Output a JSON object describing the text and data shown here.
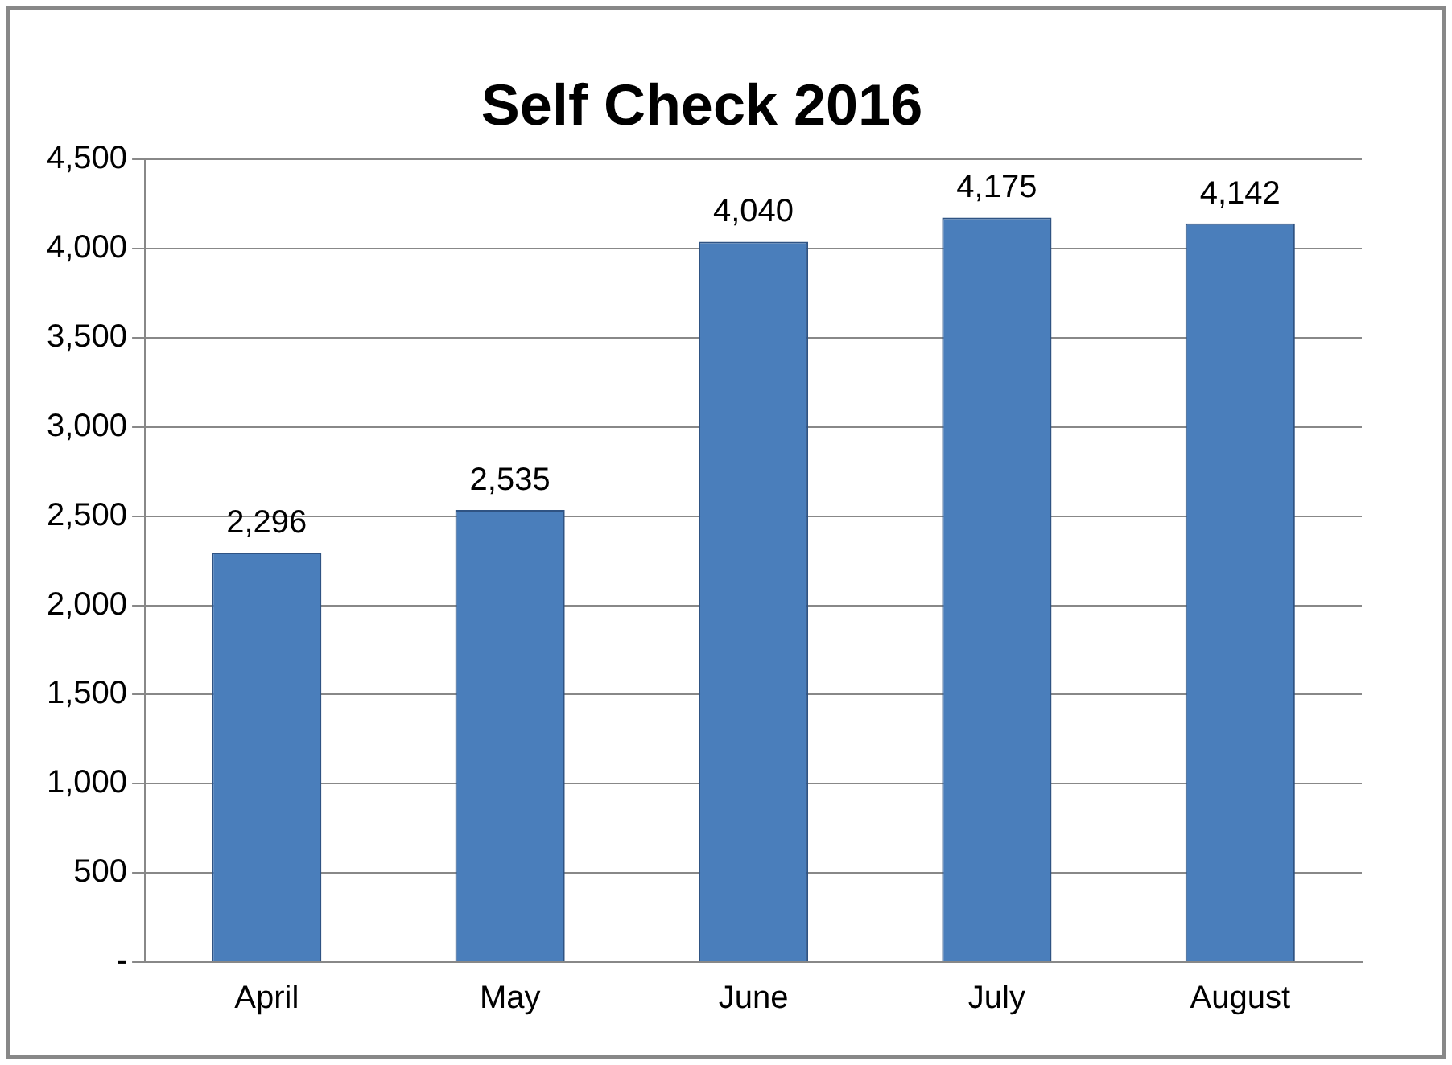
{
  "chart_data": {
    "type": "bar",
    "title": "Self Check 2016",
    "categories": [
      "April",
      "May",
      "June",
      "July",
      "August"
    ],
    "values": [
      2296,
      2535,
      4040,
      4175,
      4142
    ],
    "value_labels": [
      "2,296",
      "2,535",
      "4,040",
      "4,175",
      "4,142"
    ],
    "color": "#4a7ebb",
    "ylim": [
      0,
      4500
    ],
    "yticks": [
      {
        "value": 0,
        "label": "-"
      },
      {
        "value": 500,
        "label": "500"
      },
      {
        "value": 1000,
        "label": "1,000"
      },
      {
        "value": 1500,
        "label": "1,500"
      },
      {
        "value": 2000,
        "label": "2,000"
      },
      {
        "value": 2500,
        "label": "2,500"
      },
      {
        "value": 3000,
        "label": "3,000"
      },
      {
        "value": 3500,
        "label": "3,500"
      },
      {
        "value": 4000,
        "label": "4,000"
      },
      {
        "value": 4500,
        "label": "4,500"
      }
    ],
    "grid": "y",
    "legend": false
  }
}
